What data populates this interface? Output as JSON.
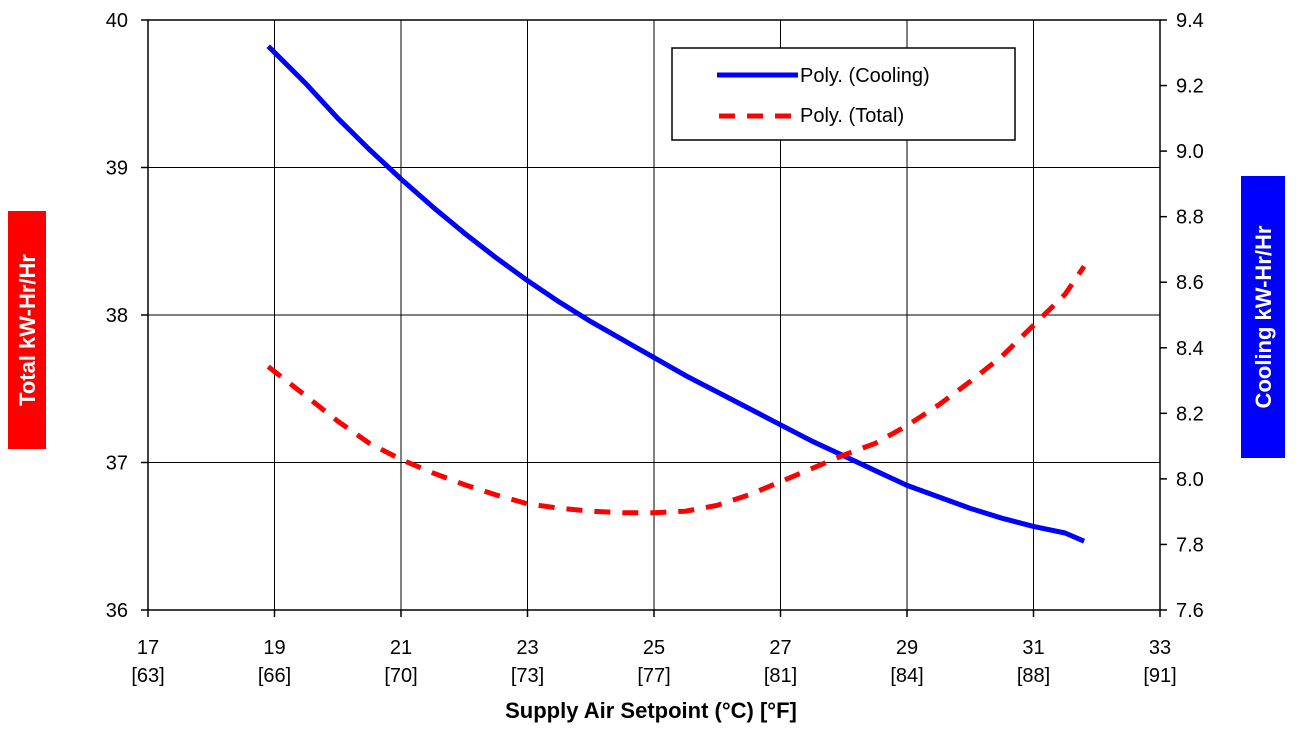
{
  "chart_data": {
    "type": "line",
    "title": "",
    "xlabel": "Supply Air Setpoint (°C)  [°F]",
    "ylabel_left": "Total kW-Hr/Hr",
    "ylabel_right": "Cooling kW-Hr/Hr",
    "xlim": [
      17,
      33
    ],
    "ylim_left": [
      36,
      40
    ],
    "ylim_right": [
      7.6,
      9.4
    ],
    "x_ticks": [
      17,
      19,
      21,
      23,
      25,
      27,
      29,
      31,
      33
    ],
    "x_tick_labels": [
      "17",
      "19",
      "21",
      "23",
      "25",
      "27",
      "29",
      "31",
      "33"
    ],
    "x_tick_labels_f": [
      "[63]",
      "[66]",
      "[70]",
      "[73]",
      "[77]",
      "[81]",
      "[84]",
      "[88]",
      "[91]"
    ],
    "y_ticks_left": [
      "36",
      "37",
      "38",
      "39",
      "40"
    ],
    "y_ticks_right": [
      "7.6",
      "7.8",
      "8.0",
      "8.2",
      "8.4",
      "8.6",
      "8.8",
      "9.0",
      "9.2",
      "9.4"
    ],
    "grid": true,
    "legend_position": "top-right",
    "series": [
      {
        "name": "Poly. (Cooling)",
        "axis": "right",
        "style": "solid",
        "color": "#0000ff",
        "x": [
          18.9,
          19.5,
          20.0,
          20.5,
          21.0,
          21.5,
          22.0,
          22.5,
          23.0,
          23.5,
          24.0,
          24.5,
          25.0,
          25.5,
          26.0,
          26.5,
          27.0,
          27.5,
          28.0,
          28.5,
          29.0,
          29.5,
          30.0,
          30.5,
          31.0,
          31.5,
          31.8
        ],
        "values": [
          9.32,
          9.205,
          9.1,
          9.005,
          8.915,
          8.83,
          8.75,
          8.675,
          8.605,
          8.54,
          8.48,
          8.425,
          8.37,
          8.315,
          8.265,
          8.215,
          8.165,
          8.115,
          8.07,
          8.025,
          7.98,
          7.945,
          7.91,
          7.88,
          7.855,
          7.835,
          7.81
        ]
      },
      {
        "name": "Poly. (Total)",
        "axis": "left",
        "style": "dashed",
        "color": "#ff0000",
        "x": [
          18.9,
          19.5,
          20.0,
          20.5,
          21.0,
          21.5,
          22.0,
          22.5,
          23.0,
          23.5,
          24.0,
          24.5,
          25.0,
          25.5,
          26.0,
          26.5,
          27.0,
          27.5,
          28.0,
          28.5,
          29.0,
          29.5,
          30.0,
          30.5,
          31.0,
          31.5,
          31.8
        ],
        "values": [
          37.65,
          37.45,
          37.28,
          37.13,
          37.02,
          36.93,
          36.85,
          36.78,
          36.72,
          36.69,
          36.67,
          36.66,
          36.66,
          36.67,
          36.71,
          36.78,
          36.87,
          36.96,
          37.05,
          37.13,
          37.25,
          37.39,
          37.55,
          37.72,
          37.93,
          38.14,
          38.33
        ]
      }
    ]
  }
}
